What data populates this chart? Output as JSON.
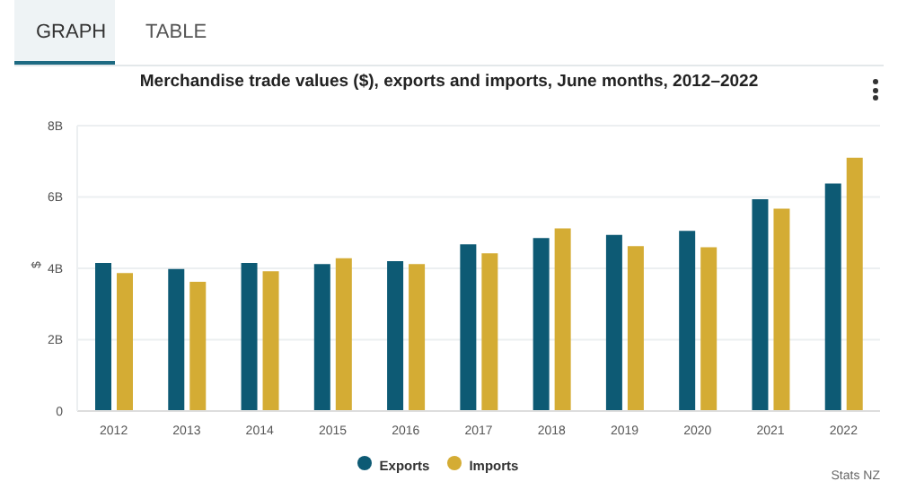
{
  "chart_data": {
    "type": "bar",
    "title": "Merchandise trade values ($), exports and imports, June months, 2012–2022",
    "ylabel": "$",
    "categories": [
      "2012",
      "2013",
      "2014",
      "2015",
      "2016",
      "2017",
      "2018",
      "2019",
      "2020",
      "2021",
      "2022"
    ],
    "series": [
      {
        "name": "Exports",
        "color": "#0d5a74",
        "values": [
          4.15,
          3.98,
          4.15,
          4.12,
          4.2,
          4.67,
          4.85,
          4.94,
          5.05,
          5.94,
          6.38
        ]
      },
      {
        "name": "Imports",
        "color": "#d4ac34",
        "values": [
          3.87,
          3.62,
          3.92,
          4.28,
          4.12,
          4.42,
          5.12,
          4.62,
          4.59,
          5.67,
          7.1
        ]
      }
    ],
    "ylim": [
      0,
      8
    ],
    "yticks": [
      0,
      {
        "value": 2,
        "label": "2B"
      },
      {
        "value": 4,
        "label": "4B"
      },
      {
        "value": 6,
        "label": "6B"
      },
      {
        "value": 8,
        "label": "8B"
      }
    ],
    "grid": "y",
    "legend": "bottom",
    "annotations": [
      "GRAPH",
      "TABLE",
      "Stats NZ"
    ]
  }
}
